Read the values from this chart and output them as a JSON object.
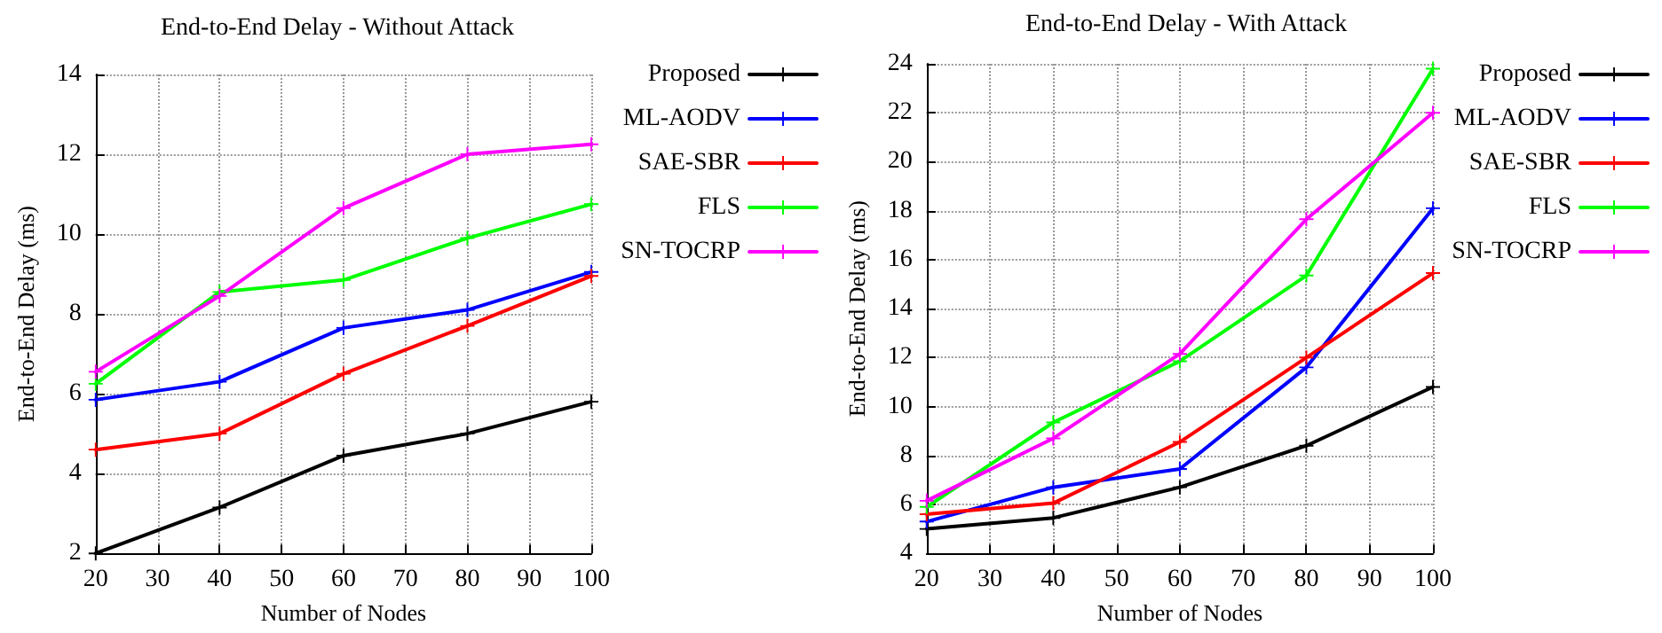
{
  "chart_data": [
    {
      "type": "line",
      "title": "End-to-End Delay - Without Attack",
      "xlabel": "Number of Nodes",
      "ylabel": "End-to-End Delay (ms)",
      "x": [
        20,
        40,
        60,
        80,
        100
      ],
      "xlim": [
        20,
        100
      ],
      "xticks": [
        20,
        30,
        40,
        50,
        60,
        70,
        80,
        90,
        100
      ],
      "ylim": [
        2,
        14
      ],
      "yticks": [
        2,
        4,
        6,
        8,
        10,
        12,
        14
      ],
      "grid": true,
      "legend": "right",
      "marker": "cross",
      "line_style": "solid",
      "series": [
        {
          "name": "Proposed",
          "color": "#000000",
          "values": [
            2.0,
            3.15,
            4.45,
            5.0,
            5.8
          ]
        },
        {
          "name": "ML-AODV",
          "color": "#0000ff",
          "values": [
            5.85,
            6.3,
            7.65,
            8.1,
            9.05
          ]
        },
        {
          "name": "SAE-SBR",
          "color": "#ff0000",
          "values": [
            4.6,
            5.0,
            6.5,
            7.7,
            8.95
          ]
        },
        {
          "name": "FLS",
          "color": "#00ff00",
          "values": [
            6.25,
            8.55,
            8.85,
            9.9,
            10.75
          ]
        },
        {
          "name": "SN-TOCRP",
          "color": "#ff00ff",
          "values": [
            6.55,
            8.45,
            10.65,
            12.0,
            12.25
          ]
        }
      ]
    },
    {
      "type": "line",
      "title": "End-to-End Delay - With Attack",
      "xlabel": "Number of Nodes",
      "ylabel": "End-to-End Delay (ms)",
      "x": [
        20,
        40,
        60,
        80,
        100
      ],
      "xlim": [
        20,
        100
      ],
      "xticks": [
        20,
        30,
        40,
        50,
        60,
        70,
        80,
        90,
        100
      ],
      "ylim": [
        4,
        24
      ],
      "yticks": [
        4,
        6,
        8,
        10,
        12,
        14,
        16,
        18,
        20,
        22,
        24
      ],
      "grid": true,
      "legend": "right",
      "marker": "cross",
      "line_style": "solid",
      "series": [
        {
          "name": "Proposed",
          "color": "#000000",
          "values": [
            5.0,
            5.45,
            6.7,
            8.4,
            10.8
          ]
        },
        {
          "name": "ML-AODV",
          "color": "#0000ff",
          "values": [
            5.3,
            6.7,
            7.45,
            11.6,
            18.1
          ]
        },
        {
          "name": "SAE-SBR",
          "color": "#ff0000",
          "values": [
            5.6,
            6.05,
            8.55,
            12.0,
            15.45
          ]
        },
        {
          "name": "FLS",
          "color": "#00ff00",
          "values": [
            5.9,
            9.35,
            11.85,
            15.35,
            23.8
          ]
        },
        {
          "name": "SN-TOCRP",
          "color": "#ff00ff",
          "values": [
            6.15,
            8.7,
            12.15,
            17.65,
            22.0
          ]
        }
      ]
    }
  ]
}
